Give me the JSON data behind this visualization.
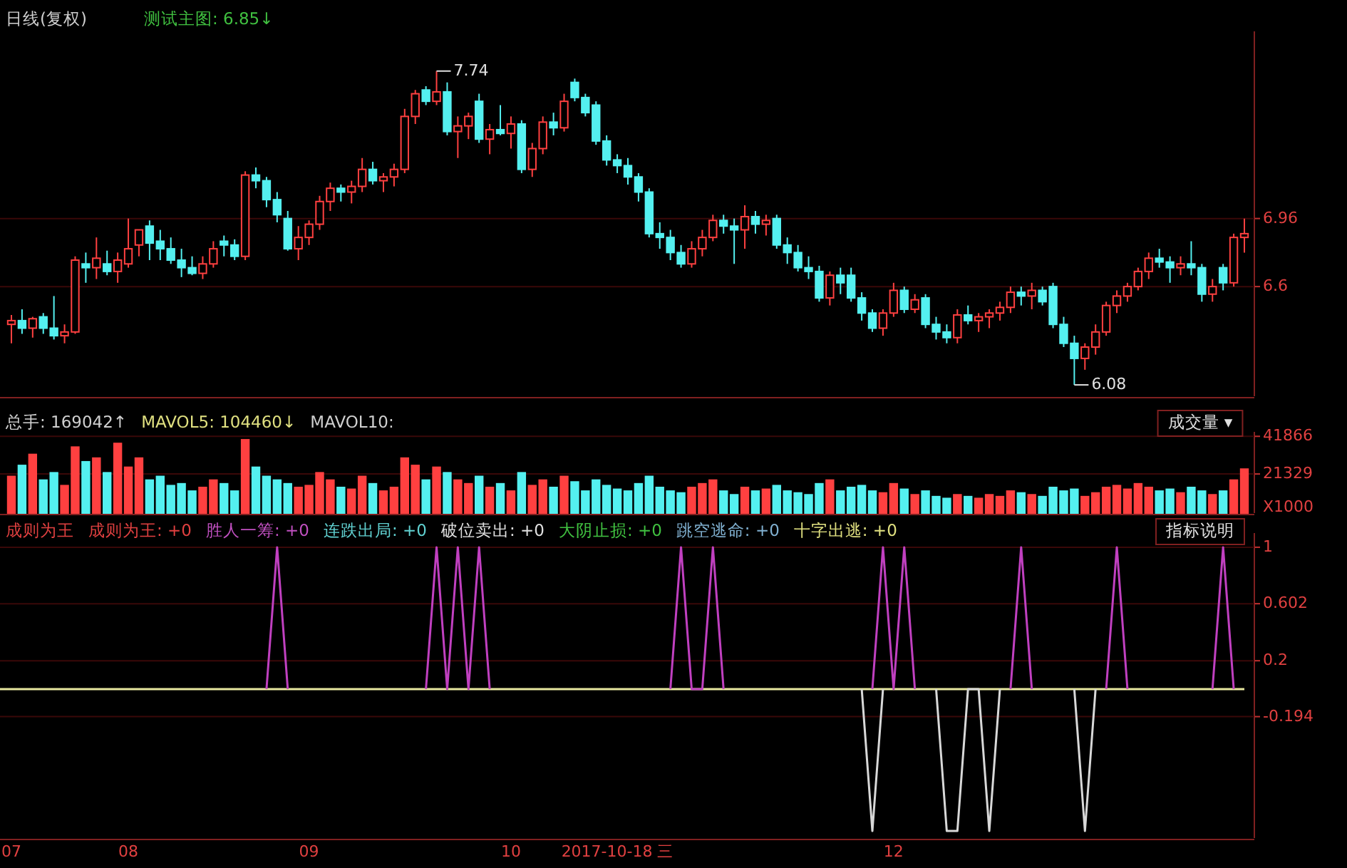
{
  "chart_data": [
    {
      "type": "candlestick",
      "title": "日线(复权)",
      "subtitle": "测试主图: 6.85↓",
      "categories": [
        null,
        null,
        null,
        null,
        null,
        null,
        null,
        null,
        null,
        null,
        null,
        null,
        null,
        null,
        null,
        null,
        null,
        null,
        null,
        null,
        null,
        null,
        null,
        null,
        null,
        null,
        null,
        null,
        null,
        null,
        null,
        null,
        null,
        null,
        null,
        null,
        null,
        null,
        null,
        null,
        null,
        null,
        null,
        null,
        null,
        null,
        null,
        null,
        null,
        null,
        null,
        null,
        null,
        null,
        null,
        null,
        null,
        null,
        null,
        null,
        null,
        null,
        null,
        null,
        null,
        null,
        null,
        null,
        null,
        null,
        null,
        null,
        null,
        null,
        null,
        null,
        null,
        null,
        null,
        null,
        null,
        null,
        null,
        null,
        null,
        null,
        null,
        null,
        null,
        null,
        null,
        null,
        null,
        null,
        null,
        null,
        null,
        null,
        null,
        null,
        null,
        null,
        null,
        null,
        null,
        null,
        null,
        null,
        null,
        null,
        null,
        null,
        null,
        null,
        null,
        null,
        null
      ],
      "ohlc": [
        [
          6.4,
          6.45,
          6.3,
          6.42
        ],
        [
          6.42,
          6.48,
          6.35,
          6.38
        ],
        [
          6.38,
          6.44,
          6.33,
          6.43
        ],
        [
          6.44,
          6.46,
          6.35,
          6.38
        ],
        [
          6.38,
          6.55,
          6.32,
          6.34
        ],
        [
          6.34,
          6.4,
          6.3,
          6.36
        ],
        [
          6.36,
          6.76,
          6.35,
          6.74
        ],
        [
          6.72,
          6.78,
          6.62,
          6.7
        ],
        [
          6.7,
          6.86,
          6.64,
          6.75
        ],
        [
          6.72,
          6.79,
          6.66,
          6.68
        ],
        [
          6.68,
          6.78,
          6.62,
          6.74
        ],
        [
          6.72,
          6.96,
          6.7,
          6.8
        ],
        [
          6.82,
          6.9,
          6.76,
          6.9
        ],
        [
          6.92,
          6.95,
          6.74,
          6.83
        ],
        [
          6.84,
          6.9,
          6.74,
          6.8
        ],
        [
          6.8,
          6.86,
          6.72,
          6.74
        ],
        [
          6.74,
          6.8,
          6.65,
          6.7
        ],
        [
          6.7,
          6.76,
          6.66,
          6.67
        ],
        [
          6.67,
          6.76,
          6.64,
          6.72
        ],
        [
          6.72,
          6.84,
          6.7,
          6.8
        ],
        [
          6.84,
          6.87,
          6.76,
          6.82
        ],
        [
          6.82,
          6.85,
          6.74,
          6.76
        ],
        [
          6.76,
          7.21,
          6.74,
          7.19
        ],
        [
          7.19,
          7.23,
          7.12,
          7.16
        ],
        [
          7.16,
          7.18,
          7.02,
          7.06
        ],
        [
          7.06,
          7.1,
          6.94,
          6.98
        ],
        [
          6.96,
          7.0,
          6.79,
          6.8
        ],
        [
          6.8,
          6.92,
          6.74,
          6.86
        ],
        [
          6.86,
          6.95,
          6.82,
          6.93
        ],
        [
          6.93,
          7.08,
          6.9,
          7.05
        ],
        [
          7.05,
          7.15,
          7.0,
          7.12
        ],
        [
          7.12,
          7.14,
          7.05,
          7.1
        ],
        [
          7.1,
          7.16,
          7.04,
          7.13
        ],
        [
          7.13,
          7.28,
          7.1,
          7.22
        ],
        [
          7.22,
          7.26,
          7.14,
          7.16
        ],
        [
          7.16,
          7.2,
          7.1,
          7.18
        ],
        [
          7.18,
          7.25,
          7.13,
          7.22
        ],
        [
          7.22,
          7.54,
          7.2,
          7.5
        ],
        [
          7.5,
          7.64,
          7.46,
          7.62
        ],
        [
          7.64,
          7.66,
          7.56,
          7.58
        ],
        [
          7.58,
          7.74,
          7.56,
          7.63
        ],
        [
          7.63,
          7.68,
          7.4,
          7.42
        ],
        [
          7.42,
          7.5,
          7.28,
          7.45
        ],
        [
          7.45,
          7.52,
          7.38,
          7.5
        ],
        [
          7.58,
          7.62,
          7.36,
          7.38
        ],
        [
          7.38,
          7.46,
          7.3,
          7.43
        ],
        [
          7.43,
          7.56,
          7.4,
          7.41
        ],
        [
          7.41,
          7.5,
          7.33,
          7.46
        ],
        [
          7.46,
          7.48,
          7.2,
          7.22
        ],
        [
          7.22,
          7.36,
          7.18,
          7.33
        ],
        [
          7.33,
          7.5,
          7.3,
          7.47
        ],
        [
          7.47,
          7.52,
          7.4,
          7.44
        ],
        [
          7.44,
          7.62,
          7.42,
          7.58
        ],
        [
          7.68,
          7.7,
          7.58,
          7.6
        ],
        [
          7.6,
          7.62,
          7.5,
          7.52
        ],
        [
          7.56,
          7.58,
          7.35,
          7.37
        ],
        [
          7.37,
          7.4,
          7.24,
          7.27
        ],
        [
          7.27,
          7.3,
          7.2,
          7.24
        ],
        [
          7.24,
          7.28,
          7.14,
          7.18
        ],
        [
          7.18,
          7.2,
          7.05,
          7.1
        ],
        [
          7.1,
          7.12,
          6.86,
          6.88
        ],
        [
          6.88,
          6.94,
          6.8,
          6.86
        ],
        [
          6.86,
          6.9,
          6.74,
          6.78
        ],
        [
          6.78,
          6.82,
          6.7,
          6.72
        ],
        [
          6.72,
          6.84,
          6.7,
          6.8
        ],
        [
          6.8,
          6.9,
          6.76,
          6.86
        ],
        [
          6.86,
          6.98,
          6.84,
          6.95
        ],
        [
          6.95,
          6.98,
          6.88,
          6.92
        ],
        [
          6.92,
          6.96,
          6.72,
          6.9
        ],
        [
          6.9,
          7.03,
          6.8,
          6.97
        ],
        [
          6.97,
          7.0,
          6.88,
          6.93
        ],
        [
          6.93,
          6.98,
          6.87,
          6.95
        ],
        [
          6.96,
          6.98,
          6.8,
          6.82
        ],
        [
          6.82,
          6.86,
          6.72,
          6.78
        ],
        [
          6.78,
          6.82,
          6.68,
          6.7
        ],
        [
          6.7,
          6.76,
          6.64,
          6.68
        ],
        [
          6.68,
          6.71,
          6.52,
          6.54
        ],
        [
          6.54,
          6.68,
          6.5,
          6.66
        ],
        [
          6.66,
          6.7,
          6.56,
          6.62
        ],
        [
          6.66,
          6.7,
          6.52,
          6.54
        ],
        [
          6.54,
          6.57,
          6.42,
          6.46
        ],
        [
          6.46,
          6.48,
          6.36,
          6.38
        ],
        [
          6.38,
          6.48,
          6.34,
          6.46
        ],
        [
          6.46,
          6.62,
          6.44,
          6.58
        ],
        [
          6.58,
          6.6,
          6.46,
          6.48
        ],
        [
          6.48,
          6.56,
          6.46,
          6.53
        ],
        [
          6.54,
          6.56,
          6.38,
          6.4
        ],
        [
          6.4,
          6.44,
          6.32,
          6.36
        ],
        [
          6.36,
          6.4,
          6.3,
          6.33
        ],
        [
          6.33,
          6.48,
          6.3,
          6.45
        ],
        [
          6.45,
          6.5,
          6.4,
          6.42
        ],
        [
          6.42,
          6.46,
          6.36,
          6.44
        ],
        [
          6.44,
          6.48,
          6.38,
          6.46
        ],
        [
          6.46,
          6.52,
          6.42,
          6.49
        ],
        [
          6.49,
          6.6,
          6.46,
          6.57
        ],
        [
          6.57,
          6.6,
          6.5,
          6.55
        ],
        [
          6.55,
          6.62,
          6.48,
          6.58
        ],
        [
          6.58,
          6.6,
          6.5,
          6.52
        ],
        [
          6.6,
          6.62,
          6.38,
          6.4
        ],
        [
          6.4,
          6.44,
          6.28,
          6.3
        ],
        [
          6.3,
          6.34,
          6.08,
          6.22
        ],
        [
          6.22,
          6.3,
          6.16,
          6.28
        ],
        [
          6.28,
          6.4,
          6.24,
          6.36
        ],
        [
          6.36,
          6.52,
          6.34,
          6.5
        ],
        [
          6.5,
          6.58,
          6.46,
          6.55
        ],
        [
          6.55,
          6.62,
          6.52,
          6.6
        ],
        [
          6.6,
          6.7,
          6.58,
          6.68
        ],
        [
          6.68,
          6.78,
          6.64,
          6.75
        ],
        [
          6.75,
          6.8,
          6.7,
          6.73
        ],
        [
          6.73,
          6.76,
          6.62,
          6.7
        ],
        [
          6.7,
          6.76,
          6.66,
          6.72
        ],
        [
          6.72,
          6.84,
          6.66,
          6.7
        ],
        [
          6.7,
          6.72,
          6.52,
          6.56
        ],
        [
          6.56,
          6.64,
          6.52,
          6.6
        ],
        [
          6.7,
          6.72,
          6.58,
          6.62
        ],
        [
          6.62,
          6.88,
          6.6,
          6.86
        ],
        [
          6.86,
          6.96,
          6.78,
          6.88
        ]
      ],
      "colors": [
        "#ff4040",
        "#54f0f0",
        "#ff4040",
        "#54f0f0",
        "#54f0f0",
        "#ff4040",
        "#ff4040",
        "#54f0f0",
        "#ff4040",
        "#54f0f0",
        "#ff4040",
        "#ff4040",
        "#ff4040",
        "#54f0f0",
        "#54f0f0",
        "#54f0f0",
        "#54f0f0",
        "#54f0f0",
        "#ff4040",
        "#ff4040",
        "#54f0f0",
        "#54f0f0",
        "#ff4040",
        "#54f0f0",
        "#54f0f0",
        "#54f0f0",
        "#54f0f0",
        "#ff4040",
        "#ff4040",
        "#ff4040",
        "#ff4040",
        "#54f0f0",
        "#ff4040",
        "#ff4040",
        "#54f0f0",
        "#ff4040",
        "#ff4040",
        "#ff4040",
        "#ff4040",
        "#54f0f0",
        "#ff4040",
        "#54f0f0",
        "#ff4040",
        "#ff4040",
        "#54f0f0",
        "#ff4040",
        "#54f0f0",
        "#ff4040",
        "#54f0f0",
        "#ff4040",
        "#ff4040",
        "#54f0f0",
        "#ff4040",
        "#54f0f0",
        "#54f0f0",
        "#54f0f0",
        "#54f0f0",
        "#54f0f0",
        "#54f0f0",
        "#54f0f0",
        "#54f0f0",
        "#54f0f0",
        "#54f0f0",
        "#54f0f0",
        "#ff4040",
        "#ff4040",
        "#ff4040",
        "#54f0f0",
        "#54f0f0",
        "#ff4040",
        "#54f0f0",
        "#ff4040",
        "#54f0f0",
        "#54f0f0",
        "#54f0f0",
        "#54f0f0",
        "#54f0f0",
        "#ff4040",
        "#54f0f0",
        "#54f0f0",
        "#54f0f0",
        "#54f0f0",
        "#ff4040",
        "#ff4040",
        "#54f0f0",
        "#ff4040",
        "#54f0f0",
        "#54f0f0",
        "#54f0f0",
        "#ff4040",
        "#54f0f0",
        "#ff4040",
        "#ff4040",
        "#ff4040",
        "#ff4040",
        "#54f0f0",
        "#ff4040",
        "#54f0f0",
        "#54f0f0",
        "#54f0f0",
        "#54f0f0",
        "#ff4040",
        "#ff4040",
        "#ff4040",
        "#ff4040",
        "#ff4040",
        "#ff4040",
        "#ff4040",
        "#54f0f0",
        "#54f0f0",
        "#ff4040",
        "#54f0f0",
        "#54f0f0",
        "#ff4040",
        "#54f0f0",
        "#ff4040",
        "#ff4040"
      ],
      "annotations": [
        "7.74",
        "6.08"
      ],
      "ylim": [
        6.02,
        7.95
      ],
      "yticks": [
        6.6,
        6.96
      ],
      "tick_labels": "y",
      "grid": "y"
    },
    {
      "type": "bar",
      "title": "总手: 169042↑",
      "ylabel": "X1000",
      "categories": [
        null,
        null,
        null,
        null,
        null,
        null,
        null,
        null,
        null,
        null,
        null,
        null,
        null,
        null,
        null,
        null,
        null,
        null,
        null,
        null,
        null,
        null,
        null,
        null,
        null,
        null,
        null,
        null,
        null,
        null,
        null,
        null,
        null,
        null,
        null,
        null,
        null,
        null,
        null,
        null,
        null,
        null,
        null,
        null,
        null,
        null,
        null,
        null,
        null,
        null,
        null,
        null,
        null,
        null,
        null,
        null,
        null,
        null,
        null,
        null,
        null,
        null,
        null,
        null,
        null,
        null,
        null,
        null,
        null,
        null,
        null,
        null,
        null,
        null,
        null,
        null,
        null,
        null,
        null,
        null,
        null,
        null,
        null,
        null,
        null,
        null,
        null,
        null,
        null,
        null,
        null,
        null,
        null,
        null,
        null,
        null,
        null,
        null,
        null,
        null,
        null,
        null,
        null,
        null,
        null,
        null,
        null,
        null,
        null,
        null,
        null,
        null,
        null,
        null,
        null,
        null,
        null
      ],
      "values": [
        20000,
        26000,
        32000,
        18000,
        22000,
        15000,
        36000,
        28000,
        30000,
        22000,
        38000,
        25000,
        30000,
        18000,
        20000,
        15000,
        16000,
        12000,
        14000,
        18000,
        16000,
        12000,
        40000,
        25000,
        20000,
        18000,
        16000,
        14000,
        15000,
        22000,
        18000,
        14000,
        13000,
        20000,
        16000,
        12000,
        14000,
        30000,
        26000,
        18000,
        25000,
        22000,
        18000,
        16000,
        20000,
        14000,
        16000,
        12000,
        22000,
        15000,
        18000,
        14000,
        20000,
        17000,
        12000,
        18000,
        15000,
        13000,
        12000,
        16000,
        20000,
        14000,
        12000,
        11000,
        14000,
        16000,
        18000,
        12000,
        10000,
        14000,
        12000,
        13000,
        15000,
        12000,
        11000,
        10000,
        16000,
        18000,
        12000,
        14000,
        15000,
        12000,
        11000,
        16000,
        13000,
        10000,
        12000,
        9000,
        8000,
        10000,
        9000,
        8000,
        10000,
        9000,
        12000,
        11000,
        10000,
        9000,
        14000,
        12000,
        13000,
        9000,
        11000,
        14000,
        15000,
        13000,
        16000,
        14000,
        12000,
        13000,
        11000,
        14000,
        12000,
        10000,
        12000,
        18000,
        24000
      ],
      "colors": [
        "#ff4040",
        "#54f0f0",
        "#ff4040",
        "#54f0f0",
        "#54f0f0",
        "#ff4040",
        "#ff4040",
        "#54f0f0",
        "#ff4040",
        "#54f0f0",
        "#ff4040",
        "#ff4040",
        "#ff4040",
        "#54f0f0",
        "#54f0f0",
        "#54f0f0",
        "#54f0f0",
        "#54f0f0",
        "#ff4040",
        "#ff4040",
        "#54f0f0",
        "#54f0f0",
        "#ff4040",
        "#54f0f0",
        "#54f0f0",
        "#54f0f0",
        "#54f0f0",
        "#ff4040",
        "#ff4040",
        "#ff4040",
        "#ff4040",
        "#54f0f0",
        "#ff4040",
        "#ff4040",
        "#54f0f0",
        "#ff4040",
        "#ff4040",
        "#ff4040",
        "#ff4040",
        "#54f0f0",
        "#ff4040",
        "#54f0f0",
        "#ff4040",
        "#ff4040",
        "#54f0f0",
        "#ff4040",
        "#54f0f0",
        "#ff4040",
        "#54f0f0",
        "#ff4040",
        "#ff4040",
        "#54f0f0",
        "#ff4040",
        "#54f0f0",
        "#54f0f0",
        "#54f0f0",
        "#54f0f0",
        "#54f0f0",
        "#54f0f0",
        "#54f0f0",
        "#54f0f0",
        "#54f0f0",
        "#54f0f0",
        "#54f0f0",
        "#ff4040",
        "#ff4040",
        "#ff4040",
        "#54f0f0",
        "#54f0f0",
        "#ff4040",
        "#54f0f0",
        "#ff4040",
        "#54f0f0",
        "#54f0f0",
        "#54f0f0",
        "#54f0f0",
        "#54f0f0",
        "#ff4040",
        "#54f0f0",
        "#54f0f0",
        "#54f0f0",
        "#54f0f0",
        "#ff4040",
        "#ff4040",
        "#54f0f0",
        "#ff4040",
        "#54f0f0",
        "#54f0f0",
        "#54f0f0",
        "#ff4040",
        "#54f0f0",
        "#ff4040",
        "#ff4040",
        "#ff4040",
        "#ff4040",
        "#54f0f0",
        "#ff4040",
        "#54f0f0",
        "#54f0f0",
        "#54f0f0",
        "#54f0f0",
        "#ff4040",
        "#ff4040",
        "#ff4040",
        "#ff4040",
        "#ff4040",
        "#ff4040",
        "#ff4040",
        "#54f0f0",
        "#54f0f0",
        "#ff4040",
        "#54f0f0",
        "#54f0f0",
        "#ff4040",
        "#54f0f0",
        "#ff4040",
        "#ff4040"
      ],
      "annotations": [
        "MAVOL5: 104460↓",
        "MAVOL10:",
        "成交量 ▾"
      ],
      "ylim": [
        0,
        44300
      ],
      "yticks": [
        41866,
        21329
      ],
      "tick_labels": "y",
      "grid": "y"
    },
    {
      "type": "line",
      "title": "成则为王",
      "categories": [
        "07",
        null,
        null,
        null,
        null,
        null,
        null,
        null,
        null,
        null,
        null,
        "08",
        null,
        null,
        null,
        null,
        null,
        null,
        null,
        null,
        null,
        null,
        null,
        null,
        null,
        null,
        null,
        null,
        "09",
        null,
        null,
        null,
        null,
        null,
        null,
        null,
        null,
        null,
        null,
        null,
        null,
        null,
        null,
        null,
        null,
        null,
        null,
        "10",
        null,
        null,
        null,
        null,
        null,
        null,
        null,
        null,
        null,
        "2017-10-18 三",
        null,
        null,
        null,
        null,
        null,
        null,
        null,
        null,
        null,
        null,
        null,
        null,
        null,
        null,
        null,
        null,
        null,
        null,
        null,
        null,
        null,
        null,
        null,
        null,
        null,
        "12",
        null,
        null,
        null,
        null,
        null,
        null,
        null,
        null,
        null,
        null,
        null,
        null,
        null,
        null,
        null,
        null,
        null,
        null,
        null,
        null,
        null,
        null,
        null,
        null,
        null,
        null,
        null,
        null,
        null,
        null,
        null,
        null,
        null
      ],
      "series": [
        {
          "color": "#c040c0",
          "values": [
            null,
            null,
            null,
            null,
            null,
            null,
            null,
            null,
            null,
            null,
            null,
            null,
            null,
            null,
            null,
            null,
            null,
            null,
            null,
            null,
            null,
            null,
            null,
            null,
            0,
            1,
            0,
            null,
            null,
            null,
            null,
            null,
            null,
            null,
            null,
            null,
            null,
            null,
            null,
            0,
            1,
            0,
            1,
            0,
            1,
            0,
            null,
            null,
            null,
            null,
            null,
            null,
            null,
            null,
            null,
            null,
            null,
            null,
            null,
            null,
            null,
            null,
            0,
            1,
            0,
            0,
            1,
            0,
            null,
            null,
            null,
            null,
            null,
            null,
            null,
            null,
            null,
            null,
            null,
            null,
            null,
            0,
            1,
            0,
            1,
            0,
            null,
            null,
            null,
            null,
            null,
            null,
            null,
            null,
            0,
            1,
            0,
            null,
            null,
            null,
            null,
            null,
            null,
            0,
            1,
            0,
            null,
            null,
            null,
            null,
            null,
            null,
            null,
            0,
            1,
            0,
            null
          ]
        },
        {
          "color": "#d8d8d8",
          "values": [
            null,
            null,
            null,
            null,
            null,
            null,
            null,
            null,
            null,
            null,
            null,
            null,
            null,
            null,
            null,
            null,
            null,
            null,
            null,
            null,
            null,
            null,
            null,
            null,
            null,
            null,
            null,
            null,
            null,
            null,
            null,
            null,
            null,
            null,
            null,
            null,
            null,
            null,
            null,
            null,
            null,
            null,
            null,
            null,
            null,
            null,
            null,
            null,
            null,
            null,
            null,
            null,
            null,
            null,
            null,
            null,
            null,
            null,
            null,
            null,
            null,
            null,
            null,
            null,
            null,
            null,
            null,
            null,
            null,
            null,
            null,
            null,
            null,
            null,
            null,
            null,
            null,
            null,
            null,
            null,
            0,
            -1,
            0,
            null,
            null,
            null,
            null,
            0,
            -1,
            -1,
            0,
            0,
            -1,
            0,
            null,
            null,
            null,
            null,
            null,
            null,
            0,
            -1,
            0,
            null,
            null,
            null,
            null,
            null,
            null,
            null,
            null,
            null,
            null,
            null,
            null,
            null,
            null
          ]
        }
      ],
      "annotations": [
        "成则为王: +0",
        "胜人一筹: +0",
        "连跌出局: +0",
        "破位卖出: +0",
        "大阴止损: +0",
        "跳空逃命: +0",
        "十字出逃: +0",
        "指标说明"
      ],
      "ref_lines": [
        {
          "axis": "y",
          "value": 0,
          "color": "#e8e8a0"
        }
      ],
      "ylim": [
        -1.05,
        1.1
      ],
      "yticks": [
        1.0,
        {
          "value": 0.602,
          "label": "0.602"
        },
        0.2,
        -0.194
      ],
      "grid": "y",
      "line_style": "solid",
      "marker": "none"
    }
  ]
}
